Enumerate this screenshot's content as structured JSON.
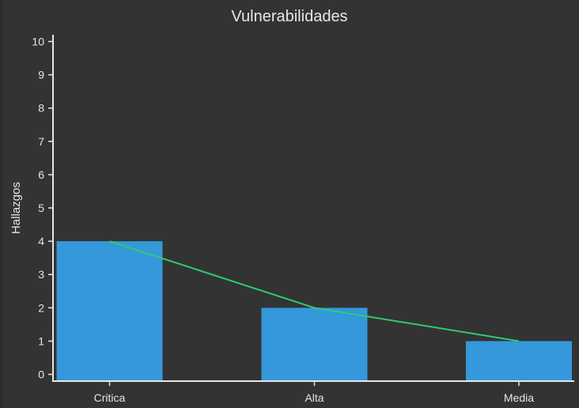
{
  "chart_data": {
    "type": "bar",
    "title": "Vulnerabilidades",
    "xlabel": "",
    "ylabel": "Hallazgos",
    "categories": [
      "Critica",
      "Alta",
      "Media"
    ],
    "series": [
      {
        "type": "bar",
        "values": [
          4,
          2,
          1
        ]
      },
      {
        "type": "line",
        "values": [
          4,
          2,
          1
        ]
      }
    ],
    "ylim": [
      0,
      10
    ],
    "yticks": [
      0,
      1,
      2,
      3,
      4,
      5,
      6,
      7,
      8,
      9,
      10
    ],
    "grid": false,
    "colors": {
      "bar": "#3498db",
      "line": "#2ecc71",
      "axis": "#e6e6e6",
      "background": "#333333"
    }
  }
}
